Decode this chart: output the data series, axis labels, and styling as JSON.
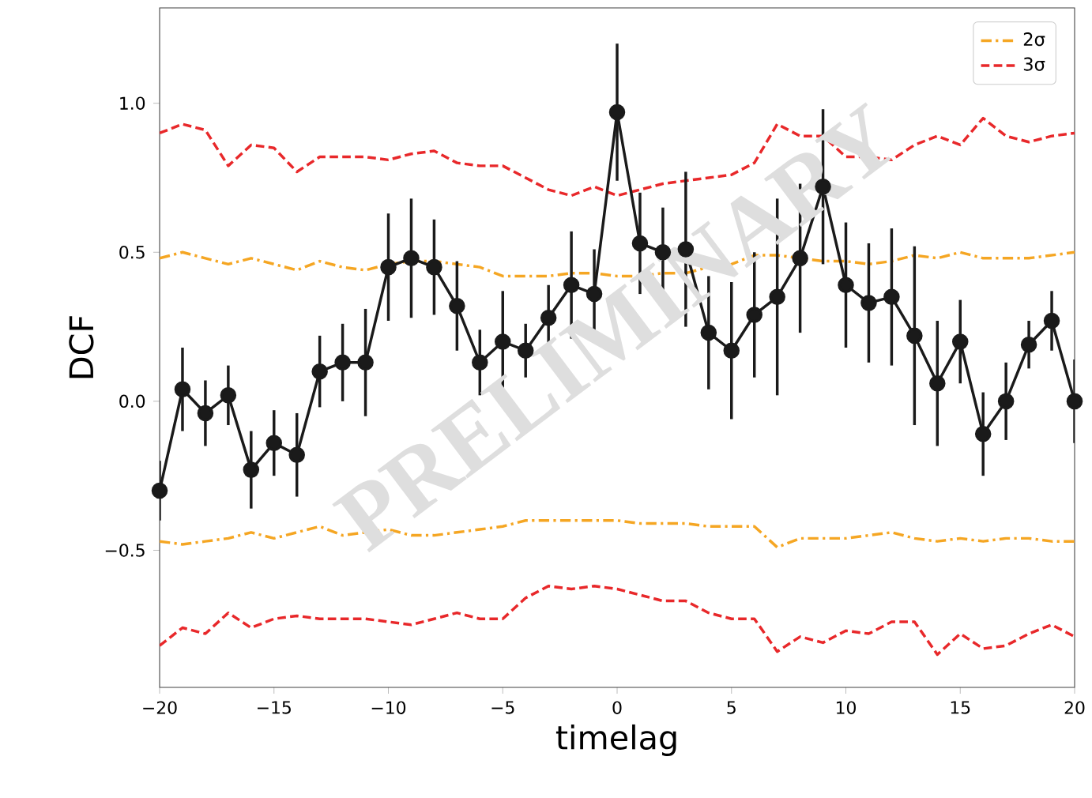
{
  "chart_data": {
    "type": "line",
    "xlabel": "timelag",
    "ylabel": "DCF",
    "annotations": [
      "PRELIMINARY"
    ],
    "x": [
      -20,
      -19,
      -18,
      -17,
      -16,
      -15,
      -14,
      -13,
      -12,
      -11,
      -10,
      -9,
      -8,
      -7,
      -6,
      -5,
      -4,
      -3,
      -2,
      -1,
      0,
      1,
      2,
      3,
      4,
      5,
      6,
      7,
      8,
      9,
      10,
      11,
      12,
      13,
      14,
      15,
      16,
      17,
      18,
      19,
      20
    ],
    "xlim": [
      -20,
      20
    ],
    "xticks": [
      {
        "value": -20,
        "label": "−20"
      },
      {
        "value": -15,
        "label": "−15"
      },
      {
        "value": -10,
        "label": "−10"
      },
      {
        "value": -5,
        "label": "−5"
      },
      0,
      5,
      10,
      15,
      20
    ],
    "ylim": [
      -0.96,
      1.32
    ],
    "yticks": [
      {
        "value": -0.5,
        "label": "−0.5"
      },
      {
        "value": 0,
        "label": "0.0"
      },
      {
        "value": 0.5,
        "label": "0.5"
      },
      {
        "value": 1,
        "label": "1.0"
      }
    ],
    "legend": "top right",
    "series": [
      {
        "name": "2σ",
        "color": "#f5a623",
        "line_style": "dashdot",
        "marker": "none",
        "values": [
          0.48,
          0.5,
          0.48,
          0.46,
          0.48,
          0.46,
          0.44,
          0.47,
          0.45,
          0.44,
          0.46,
          0.47,
          0.47,
          0.46,
          0.45,
          0.42,
          0.42,
          0.42,
          0.43,
          0.43,
          0.42,
          0.42,
          0.43,
          0.43,
          0.45,
          0.46,
          0.49,
          0.49,
          0.48,
          0.47,
          0.47,
          0.46,
          0.47,
          0.49,
          0.48,
          0.5,
          0.48,
          0.48,
          0.48,
          0.49,
          0.5
        ]
      },
      {
        "color": "#f5a623",
        "line_style": "dashdot",
        "marker": "none",
        "values": [
          -0.47,
          -0.48,
          -0.47,
          -0.46,
          -0.44,
          -0.46,
          -0.44,
          -0.42,
          -0.45,
          -0.44,
          -0.43,
          -0.45,
          -0.45,
          -0.44,
          -0.43,
          -0.42,
          -0.4,
          -0.4,
          -0.4,
          -0.4,
          -0.4,
          -0.41,
          -0.41,
          -0.41,
          -0.42,
          -0.42,
          -0.42,
          -0.49,
          -0.46,
          -0.46,
          -0.46,
          -0.45,
          -0.44,
          -0.46,
          -0.47,
          -0.46,
          -0.47,
          -0.46,
          -0.46,
          -0.47,
          -0.47
        ]
      },
      {
        "name": "3σ",
        "color": "#e8282a",
        "line_style": "dashed",
        "marker": "none",
        "values": [
          0.9,
          0.93,
          0.91,
          0.79,
          0.86,
          0.85,
          0.77,
          0.82,
          0.82,
          0.82,
          0.81,
          0.83,
          0.84,
          0.8,
          0.79,
          0.79,
          0.75,
          0.71,
          0.69,
          0.72,
          0.69,
          0.71,
          0.73,
          0.74,
          0.75,
          0.76,
          0.8,
          0.93,
          0.89,
          0.89,
          0.82,
          0.82,
          0.81,
          0.86,
          0.89,
          0.86,
          0.95,
          0.89,
          0.87,
          0.89,
          0.9
        ]
      },
      {
        "color": "#e8282a",
        "line_style": "dashed",
        "marker": "none",
        "values": [
          -0.82,
          -0.76,
          -0.78,
          -0.71,
          -0.76,
          -0.73,
          -0.72,
          -0.73,
          -0.73,
          -0.73,
          -0.74,
          -0.75,
          -0.73,
          -0.71,
          -0.73,
          -0.73,
          -0.66,
          -0.62,
          -0.63,
          -0.62,
          -0.63,
          -0.65,
          -0.67,
          -0.67,
          -0.71,
          -0.73,
          -0.73,
          -0.84,
          -0.79,
          -0.81,
          -0.77,
          -0.78,
          -0.74,
          -0.74,
          -0.85,
          -0.78,
          -0.83,
          -0.82,
          -0.78,
          -0.75,
          -0.79
        ]
      },
      {
        "color": "#1a1a1a",
        "line_style": "solid",
        "marker": "circle",
        "values": [
          -0.3,
          0.04,
          -0.04,
          0.02,
          -0.23,
          -0.14,
          -0.18,
          0.1,
          0.13,
          0.13,
          0.45,
          0.48,
          0.45,
          0.32,
          0.13,
          0.2,
          0.17,
          0.28,
          0.39,
          0.36,
          0.97,
          0.53,
          0.5,
          0.51,
          0.23,
          0.17,
          0.29,
          0.35,
          0.48,
          0.72,
          0.39,
          0.33,
          0.35,
          0.22,
          0.06,
          0.2,
          -0.11,
          0.0,
          0.19,
          0.27,
          0.0
        ],
        "errors": [
          0.1,
          0.14,
          0.11,
          0.1,
          0.13,
          0.11,
          0.14,
          0.12,
          0.13,
          0.18,
          0.18,
          0.2,
          0.16,
          0.15,
          0.11,
          0.17,
          0.09,
          0.11,
          0.18,
          0.15,
          0.23,
          0.17,
          0.15,
          0.26,
          0.19,
          0.23,
          0.21,
          0.33,
          0.25,
          0.26,
          0.21,
          0.2,
          0.23,
          0.3,
          0.21,
          0.14,
          0.14,
          0.13,
          0.08,
          0.1,
          0.14
        ]
      }
    ]
  }
}
